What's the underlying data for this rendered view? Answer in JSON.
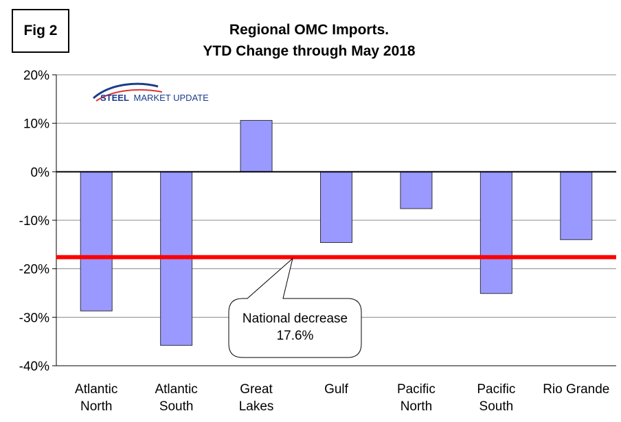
{
  "figure_label": "Fig 2",
  "logo": {
    "text_bold": "STEEL",
    "text_rest": "MARKET UPDATE"
  },
  "callout": {
    "line1": "National decrease",
    "line2": "17.6%"
  },
  "colors": {
    "bar_fill": "#9999ff",
    "bar_stroke": "#333333",
    "reference_line": "#ff0000",
    "grid": "#888888"
  },
  "chart_data": {
    "type": "bar",
    "title": [
      "Regional OMC Imports.",
      "YTD Change through May 2018"
    ],
    "categories": [
      [
        "Atlantic",
        "North"
      ],
      [
        "Atlantic",
        "South"
      ],
      [
        "Great",
        "Lakes"
      ],
      [
        "Gulf"
      ],
      [
        "Pacific",
        "North"
      ],
      [
        "Pacific",
        "South"
      ],
      [
        "Rio Grande"
      ]
    ],
    "values": [
      -28.7,
      -35.8,
      10.6,
      -14.6,
      -7.6,
      -25.1,
      -14.0
    ],
    "ylim": [
      -40,
      20
    ],
    "yticks": [
      20,
      10,
      0,
      -10,
      -20,
      -30,
      -40
    ],
    "ytick_labels": [
      "20%",
      "10%",
      "0%",
      "-10%",
      "-20%",
      "-30%",
      "-40%"
    ],
    "grid": true,
    "reference_line": {
      "value": -17.6,
      "label": "National decrease 17.6%"
    },
    "xlabel": "",
    "ylabel": ""
  }
}
